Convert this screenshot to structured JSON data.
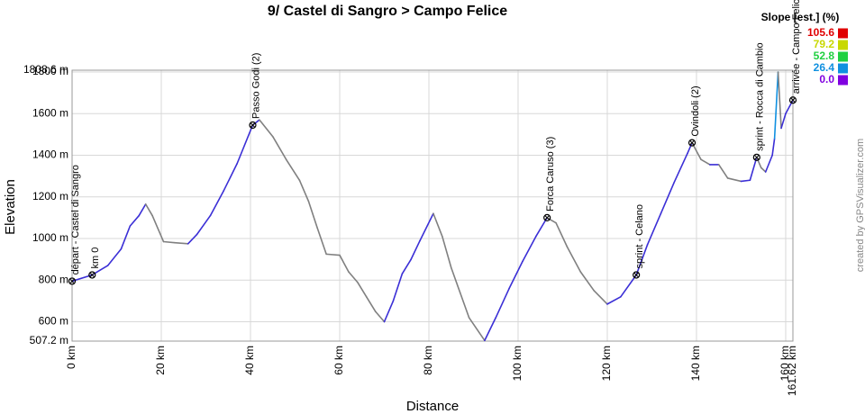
{
  "chart_data": {
    "type": "line",
    "title": "9/ Castel di Sangro > Campo Felice",
    "x_label": "Distance",
    "y_label": "Elevation",
    "credit": "created by GPSVisualizer.com",
    "x": [
      0,
      4.5,
      8,
      11,
      13,
      15,
      16.5,
      18,
      20.5,
      23,
      26,
      28,
      31,
      34,
      37,
      40.5,
      42,
      45,
      48,
      51,
      53,
      55,
      57,
      60,
      62,
      64,
      66,
      68,
      70,
      72,
      74,
      76,
      78,
      81,
      83,
      85,
      87,
      89,
      92.5,
      95,
      98,
      101,
      104,
      106.5,
      108.5,
      111,
      114,
      117,
      120,
      123,
      126.5,
      129,
      132,
      135,
      138,
      139,
      141,
      143,
      145,
      147,
      150,
      152,
      153.5,
      154.5,
      155.5,
      157,
      157.5,
      158.3,
      159,
      160,
      161.62
    ],
    "series": [
      {
        "color": "#3b2fd6",
        "values": [
          795,
          825,
          870,
          950,
          1060,
          1110,
          1165,
          1110,
          985,
          980,
          975,
          1020,
          1110,
          1230,
          1360,
          1545,
          1570,
          1490,
          1380,
          1280,
          1180,
          1050,
          925,
          920,
          840,
          790,
          720,
          650,
          600,
          700,
          830,
          900,
          990,
          1120,
          1010,
          860,
          740,
          620,
          510,
          620,
          760,
          890,
          1010,
          1100,
          1075,
          960,
          840,
          750,
          685,
          720,
          825,
          970,
          1120,
          1270,
          1410,
          1460,
          1380,
          1355,
          1355,
          1290,
          1275,
          1280,
          1390,
          1340,
          1320,
          1400,
          1480,
          1800,
          1530,
          1600,
          1665
        ]
      }
    ],
    "descent_color": "#808080",
    "xlim": [
      0,
      161.62
    ],
    "ylim": [
      507.2,
      1808.6
    ],
    "xticks": [
      {
        "value": 0,
        "label": "0 km"
      },
      {
        "value": 20,
        "label": "20 km"
      },
      {
        "value": 40,
        "label": "40 km"
      },
      {
        "value": 60,
        "label": "60 km"
      },
      {
        "value": 80,
        "label": "80 km"
      },
      {
        "value": 100,
        "label": "100 km"
      },
      {
        "value": 120,
        "label": "120 km"
      },
      {
        "value": 140,
        "label": "140 km"
      },
      {
        "value": 160,
        "label": "160 km"
      },
      {
        "value": 161.62,
        "label": "161.62 km"
      }
    ],
    "yticks": [
      {
        "value": 507.2,
        "label": "507.2 m"
      },
      {
        "value": 600,
        "label": "600 m"
      },
      {
        "value": 800,
        "label": "800 m"
      },
      {
        "value": 1000,
        "label": "1000 m"
      },
      {
        "value": 1200,
        "label": "1200 m"
      },
      {
        "value": 1400,
        "label": "1400 m"
      },
      {
        "value": 1600,
        "label": "1600 m"
      },
      {
        "value": 1800,
        "label": "1800 m"
      },
      {
        "value": 1808.6,
        "label": "1808.6 m"
      }
    ],
    "grid": true,
    "waypoints": [
      {
        "x": 0,
        "y": 795,
        "label": "départ - Castel di Sangro"
      },
      {
        "x": 4.5,
        "y": 825,
        "label": "km 0"
      },
      {
        "x": 40.5,
        "y": 1545,
        "label": "Passo Godi (2)"
      },
      {
        "x": 106.5,
        "y": 1100,
        "label": "Forca Caruso (3)"
      },
      {
        "x": 126.5,
        "y": 825,
        "label": "sprint - Celano"
      },
      {
        "x": 139,
        "y": 1460,
        "label": "Ovindoli (2)"
      },
      {
        "x": 153.5,
        "y": 1390,
        "label": "sprint - Rocca di Cambio"
      },
      {
        "x": 161.62,
        "y": 1665,
        "label": "arrivée - Campo Felice"
      }
    ],
    "slope_legend": {
      "title": "Slope [est.] (%)",
      "items": [
        {
          "value": 105.6,
          "color": "#e00000"
        },
        {
          "value": 79.2,
          "color": "#c8d800"
        },
        {
          "value": 52.8,
          "color": "#20d040"
        },
        {
          "value": 26.4,
          "color": "#1090e0"
        },
        {
          "value": 0,
          "label": "0.0",
          "color": "#8000e0"
        }
      ]
    }
  }
}
